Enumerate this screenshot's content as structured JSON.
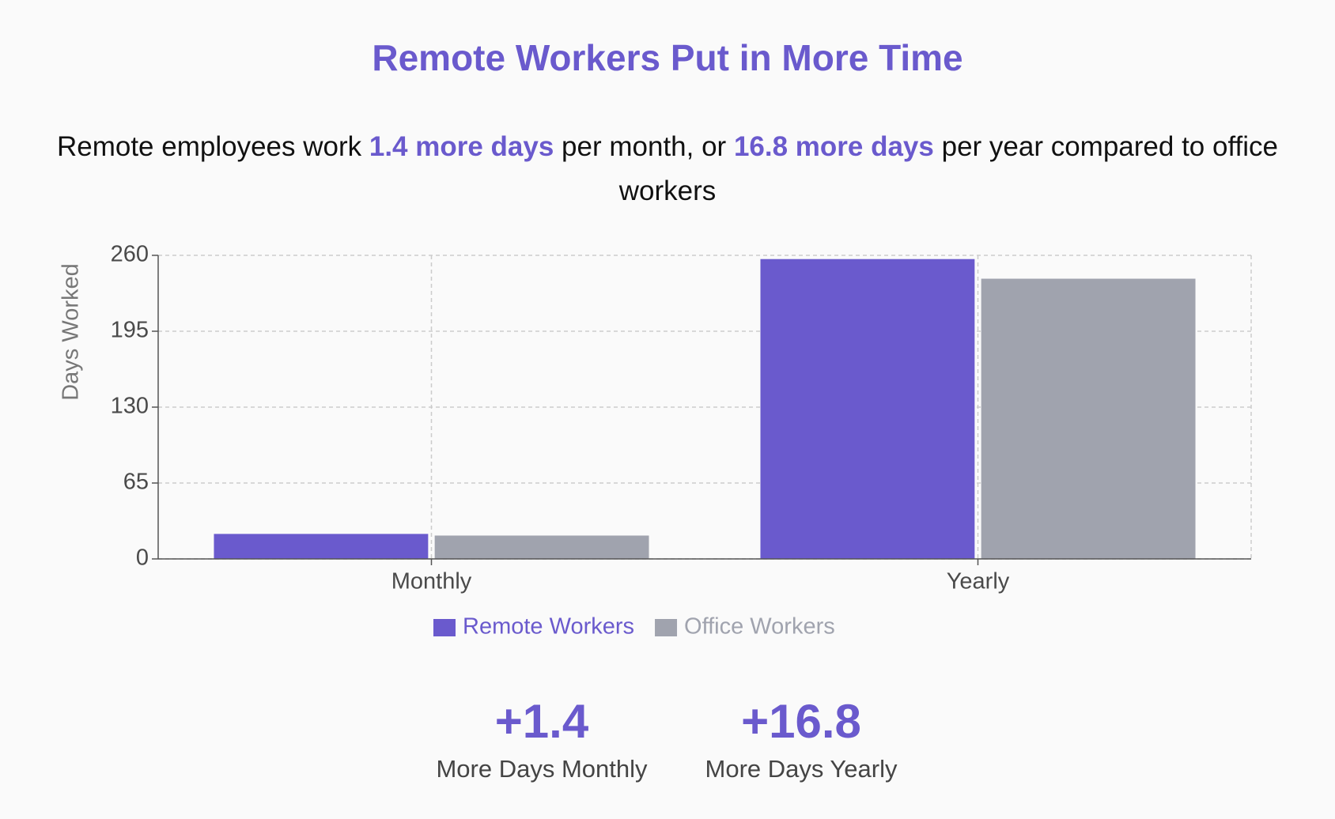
{
  "chart_data": {
    "type": "bar",
    "title": "Remote Workers Put in More Time",
    "subtitle": [
      "Remote employees work ",
      "1.4 more days",
      " per month, or ",
      "16.8 more days",
      " per year compared to office workers"
    ],
    "y_label": "Days Worked",
    "categories": [
      "Monthly",
      "Yearly"
    ],
    "series": [
      {
        "name": "Remote Workers",
        "color": "#6a5acd",
        "values": [
          21.4,
          256.8
        ]
      },
      {
        "name": "Office Workers",
        "color": "#a0a3ae",
        "values": [
          20,
          240
        ]
      }
    ],
    "ylim": [
      0,
      260
    ],
    "yticks": [
      0,
      65,
      130,
      195,
      260
    ],
    "grid": true,
    "stats": [
      {
        "value": "+1.4",
        "label": "More Days Monthly"
      },
      {
        "value": "+16.8",
        "label": "More Days Yearly"
      }
    ]
  }
}
